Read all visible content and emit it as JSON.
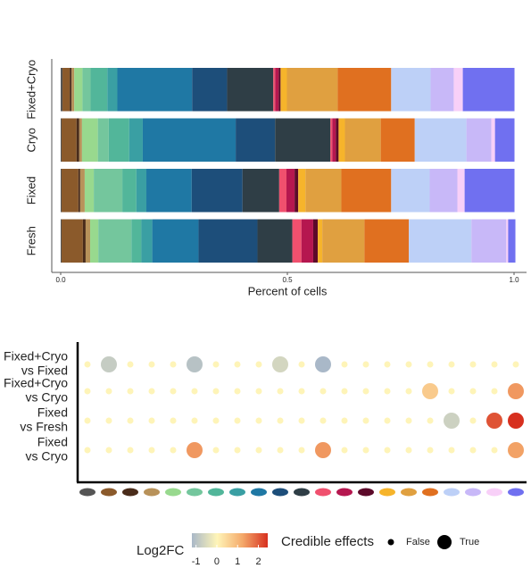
{
  "chart_data": [
    {
      "type": "bar",
      "orientation": "horizontal",
      "stacked": true,
      "categories": [
        "Fresh",
        "Fixed",
        "Cryo",
        "Fixed+Cryo"
      ],
      "xlabel": "Percent of cells",
      "xlim": [
        0,
        1
      ],
      "xticks": [
        {
          "value": 0,
          "label": "0.0"
        },
        {
          "value": 0.5,
          "label": "0.5"
        },
        {
          "value": 1,
          "label": "1.0"
        }
      ],
      "series": [
        {
          "color": "#555555",
          "values": [
            0.002,
            0.002,
            0.002,
            0.004
          ]
        },
        {
          "color": "#8b5a2b",
          "values": [
            0.047,
            0.037,
            0.033,
            0.016
          ]
        },
        {
          "color": "#4a2c1a",
          "values": [
            0.006,
            0.004,
            0.006,
            0.004
          ]
        },
        {
          "color": "#b8925a",
          "values": [
            0.01,
            0.01,
            0.006,
            0.006
          ]
        },
        {
          "color": "#98d98e",
          "values": [
            0.018,
            0.02,
            0.035,
            0.018
          ]
        },
        {
          "color": "#74c69d",
          "values": [
            0.073,
            0.063,
            0.024,
            0.018
          ]
        },
        {
          "color": "#52b69a",
          "values": [
            0.022,
            0.031,
            0.045,
            0.037
          ]
        },
        {
          "color": "#3a9fa3",
          "values": [
            0.024,
            0.022,
            0.03,
            0.022
          ]
        },
        {
          "color": "#1f78a4",
          "values": [
            0.102,
            0.1,
            0.205,
            0.165
          ]
        },
        {
          "color": "#1d4e7a",
          "values": [
            0.13,
            0.112,
            0.087,
            0.077
          ]
        },
        {
          "color": "#2f3e46",
          "values": [
            0.077,
            0.081,
            0.122,
            0.102
          ]
        },
        {
          "color": "#f0506e",
          "values": [
            0.02,
            0.016,
            0.004,
            0.004
          ]
        },
        {
          "color": "#b5174f",
          "values": [
            0.026,
            0.018,
            0.008,
            0.008
          ]
        },
        {
          "color": "#5c0a2a",
          "values": [
            0.01,
            0.008,
            0.006,
            0.004
          ]
        },
        {
          "color": "#f6b42b",
          "values": [
            0.01,
            0.016,
            0.014,
            0.014
          ]
        },
        {
          "color": "#e0a040",
          "values": [
            0.093,
            0.079,
            0.079,
            0.112
          ]
        },
        {
          "color": "#e07020",
          "values": [
            0.098,
            0.11,
            0.075,
            0.118
          ]
        },
        {
          "color": "#bdd0f7",
          "values": [
            0.138,
            0.085,
            0.114,
            0.087
          ]
        },
        {
          "color": "#c8b8f8",
          "values": [
            0.077,
            0.061,
            0.055,
            0.051
          ]
        },
        {
          "color": "#f8d0f8",
          "values": [
            0.004,
            0.016,
            0.008,
            0.02
          ]
        },
        {
          "color": "#7070f0",
          "values": [
            0.016,
            0.11,
            0.043,
            0.114
          ]
        }
      ]
    },
    {
      "type": "dot_matrix",
      "rows": [
        [
          "Fixed+Cryo",
          "vs Fixed"
        ],
        [
          "Fixed+Cryo",
          "vs Cryo"
        ],
        [
          "Fixed",
          "vs Fresh"
        ],
        [
          "Fixed",
          "vs Cryo"
        ]
      ],
      "values": [
        [
          0,
          -0.8,
          0,
          0,
          0,
          -1,
          0,
          0,
          0,
          -0.6,
          0,
          -1.2,
          0,
          0,
          0,
          0,
          0,
          0,
          0,
          0,
          0
        ],
        [
          0,
          0,
          0,
          0,
          0,
          0,
          0,
          0,
          0,
          0,
          0,
          0,
          0,
          0,
          0,
          0,
          0.7,
          0,
          0,
          0,
          1.4
        ],
        [
          0,
          0,
          0,
          0,
          0,
          0,
          0,
          0,
          0,
          0,
          0,
          0,
          0,
          0,
          0,
          0,
          0,
          -0.7,
          0,
          2.1,
          2.5
        ],
        [
          0,
          0,
          0,
          0,
          0,
          1.4,
          0,
          0,
          0,
          0,
          0,
          1.4,
          0,
          0,
          0,
          0,
          0,
          0,
          0,
          0,
          1.3
        ]
      ],
      "credible": [
        [
          false,
          true,
          false,
          false,
          false,
          true,
          false,
          false,
          false,
          true,
          false,
          true,
          false,
          false,
          false,
          false,
          false,
          false,
          false,
          false,
          false
        ],
        [
          false,
          false,
          false,
          false,
          false,
          false,
          false,
          false,
          false,
          false,
          false,
          false,
          false,
          false,
          false,
          false,
          true,
          false,
          false,
          false,
          true
        ],
        [
          false,
          false,
          false,
          false,
          false,
          false,
          false,
          false,
          false,
          false,
          false,
          false,
          false,
          false,
          false,
          false,
          false,
          true,
          false,
          true,
          true
        ],
        [
          false,
          false,
          false,
          false,
          false,
          true,
          false,
          false,
          false,
          false,
          false,
          true,
          false,
          false,
          false,
          false,
          false,
          false,
          false,
          false,
          true
        ]
      ],
      "color_title": "Log2FC",
      "color_lim": [
        -1.2,
        2.45
      ],
      "color_stops": [
        "#a9b8c8",
        "#fff5b8",
        "#f4a96a",
        "#d7301f"
      ],
      "color_ticks": [
        -1,
        0,
        1,
        2
      ],
      "size_title": "Credible effects",
      "size_labels": [
        "False",
        "True"
      ]
    }
  ]
}
